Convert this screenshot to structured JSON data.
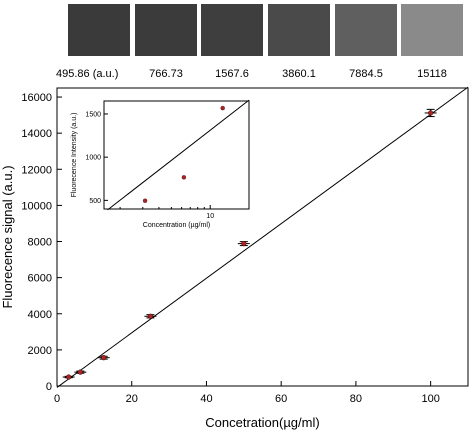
{
  "swatches": [
    {
      "value": "495.86",
      "unit": "(a.u.)",
      "color": "#3a3a3a"
    },
    {
      "value": "766.73",
      "color": "#3b3b3b"
    },
    {
      "value": "1567.6",
      "color": "#3e3e3e"
    },
    {
      "value": "3860.1",
      "color": "#4a4a4a"
    },
    {
      "value": "7884.5",
      "color": "#5f5f5f"
    },
    {
      "value": "15118",
      "color": "#8a8a8a"
    }
  ],
  "chart_data": [
    {
      "type": "scatter",
      "xlabel": "Concetration(µg/ml)",
      "ylabel": "Fluorecence signal (a.u.)",
      "xlim": [
        0,
        110
      ],
      "ylim": [
        0,
        16500
      ],
      "xticks": [
        0,
        20,
        40,
        60,
        80,
        100
      ],
      "yticks": [
        0,
        2000,
        4000,
        6000,
        8000,
        10000,
        12000,
        14000,
        16000
      ],
      "x": [
        3.125,
        6.25,
        12.5,
        25,
        50,
        100
      ],
      "y": [
        495.86,
        766.73,
        1567.6,
        3860.1,
        7884.5,
        15118
      ],
      "yerr": [
        40,
        60,
        80,
        90,
        110,
        200
      ],
      "fit_line": {
        "x": [
          0,
          110
        ],
        "y": [
          -80,
          16550
        ]
      },
      "marker_color": "#b22222",
      "line_color": "#000000"
    },
    {
      "type": "scatter",
      "xlabel": "Concentration (µg/ml)",
      "ylabel": "Fluorecence Intensity (a.u.)",
      "xscale": "log",
      "xlim": [
        1.5,
        20
      ],
      "ylim": [
        400,
        1650
      ],
      "xticks": [
        10
      ],
      "yticks": [
        500,
        1000,
        1500
      ],
      "x": [
        3.125,
        6.25,
        12.5
      ],
      "y": [
        495.86,
        766.73,
        1567.6
      ],
      "fit_line": {
        "x": [
          1.6,
          20
        ],
        "y": [
          390,
          1660
        ]
      },
      "marker_color": "#b22222",
      "line_color": "#000000"
    }
  ]
}
